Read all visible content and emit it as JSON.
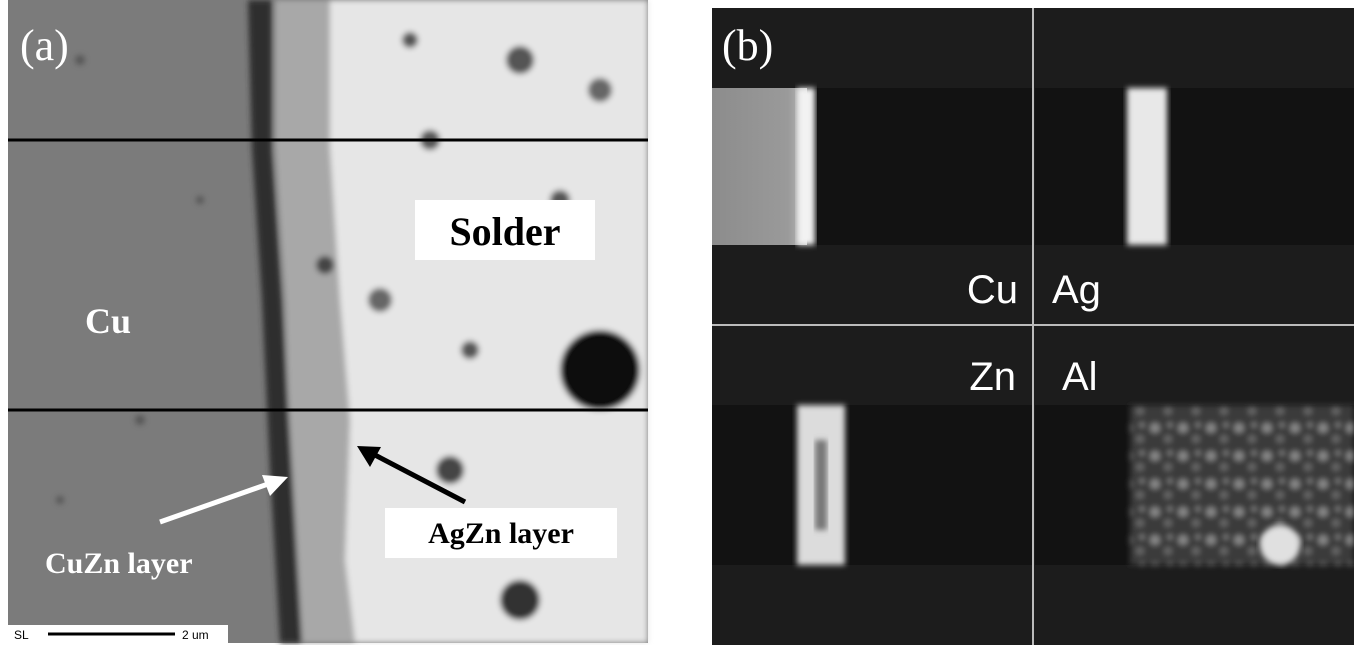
{
  "panel_a": {
    "label": "(a)",
    "labels": {
      "solder": "Solder",
      "cu": "Cu",
      "agzn": "AgZn layer",
      "cuzn": "CuZn layer"
    },
    "scale_bar": {
      "prefix": "SL",
      "text": "2 um"
    }
  },
  "panel_b": {
    "label": "(b)",
    "elements": [
      "Cu",
      "Ag",
      "Zn",
      "Al"
    ]
  }
}
